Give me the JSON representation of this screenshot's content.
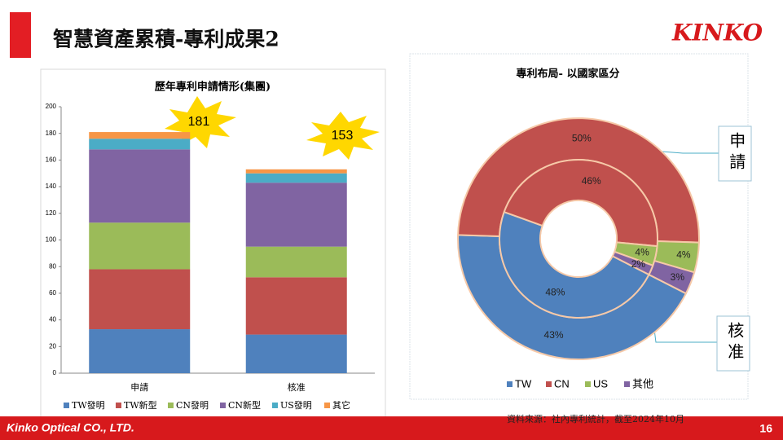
{
  "title": "智慧資產累積-專利成果2",
  "logo": "KINKO",
  "footer": {
    "company": "Kinko Optical CO., LTD.",
    "page": "16"
  },
  "source": "資料來源：社內專利統計，截至2024年10月",
  "chart_data": [
    {
      "type": "stacked-bar",
      "title": "歷年專利申請情形(集團)",
      "categories": [
        "申請",
        "核准"
      ],
      "series": [
        {
          "name": "TW發明",
          "color": "#4f81bd",
          "values": [
            33,
            29
          ]
        },
        {
          "name": "TW新型",
          "color": "#c0504d",
          "values": [
            45,
            43
          ]
        },
        {
          "name": "CN發明",
          "color": "#9bbb59",
          "values": [
            35,
            23
          ]
        },
        {
          "name": "CN新型",
          "color": "#8064a2",
          "values": [
            55,
            48
          ]
        },
        {
          "name": "US發明",
          "color": "#4bacc6",
          "values": [
            8,
            7
          ]
        },
        {
          "name": "其它",
          "color": "#f79646",
          "values": [
            5,
            3
          ]
        }
      ],
      "totals": [
        181,
        153
      ],
      "ylim": [
        0,
        200
      ],
      "yticks": [
        0,
        20,
        40,
        60,
        80,
        100,
        120,
        140,
        160,
        180,
        200
      ],
      "legend": "bottom"
    },
    {
      "type": "donut",
      "title": "專利布局- 以國家區分",
      "categories": [
        "TW",
        "CN",
        "US",
        "其他"
      ],
      "colors": [
        "#4f81bd",
        "#c0504d",
        "#9bbb59",
        "#8064a2"
      ],
      "series": [
        {
          "name": "申請",
          "values": [
            43,
            50,
            4,
            3
          ],
          "value_labels": [
            "43%",
            "50%",
            "4%",
            "3%"
          ]
        },
        {
          "name": "核准",
          "values": [
            48,
            46,
            4,
            2
          ],
          "value_labels": [
            "48%",
            "46%",
            "4%",
            "2%"
          ]
        }
      ],
      "legend": "bottom"
    }
  ]
}
